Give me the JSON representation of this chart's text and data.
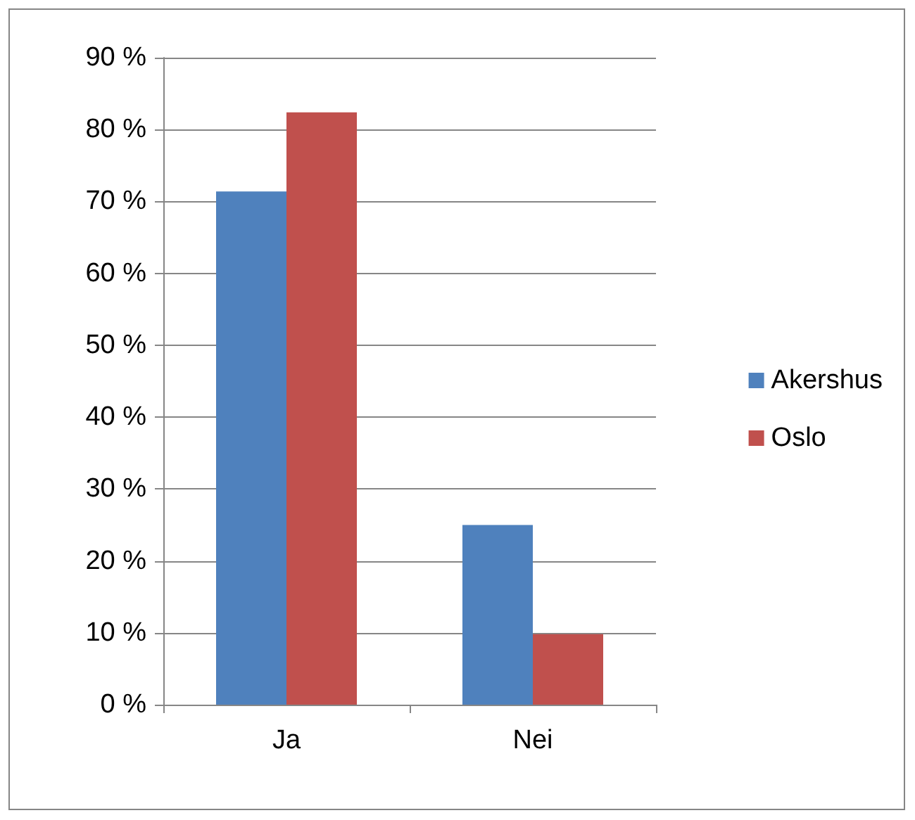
{
  "chart_data": {
    "type": "bar",
    "categories": [
      "Ja",
      "Nei"
    ],
    "series": [
      {
        "name": "Akershus",
        "color": "#4f81bd",
        "values": [
          71.4,
          25
        ]
      },
      {
        "name": "Oslo",
        "color": "#c0504d",
        "values": [
          82.4,
          9.8
        ]
      }
    ],
    "ylim": [
      0,
      90
    ],
    "yticks": [
      {
        "value": 0,
        "label": "0 %"
      },
      {
        "value": 10,
        "label": "10 %"
      },
      {
        "value": 20,
        "label": "20 %"
      },
      {
        "value": 30,
        "label": "30 %"
      },
      {
        "value": 40,
        "label": "40 %"
      },
      {
        "value": 50,
        "label": "50 %"
      },
      {
        "value": 60,
        "label": "60 %"
      },
      {
        "value": 70,
        "label": "70 %"
      },
      {
        "value": 80,
        "label": "80 %"
      },
      {
        "value": 90,
        "label": "90 %"
      }
    ],
    "grid": "y",
    "legend": "right"
  }
}
